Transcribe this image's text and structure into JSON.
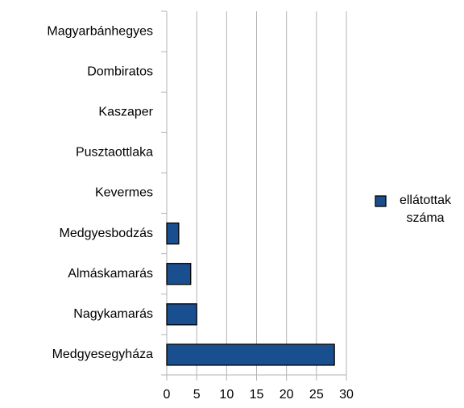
{
  "chart_data": {
    "type": "bar",
    "orientation": "horizontal",
    "categories": [
      "Magyarbánhegyes",
      "Dombiratos",
      "Kaszaper",
      "Pusztaottlaka",
      "Kevermes",
      "Medgyesbodzás",
      "Almáskamarás",
      "Nagykamarás",
      "Medgyesegyháza"
    ],
    "series": [
      {
        "name": "ellátottak száma",
        "color": "#1a4f8f",
        "values": [
          0,
          0,
          0,
          0,
          0,
          2,
          4,
          5,
          28
        ]
      }
    ],
    "xlim": [
      0,
      30
    ],
    "xticks": [
      0,
      5,
      10,
      15,
      20,
      25,
      30
    ],
    "grid": true,
    "legend": "right"
  }
}
